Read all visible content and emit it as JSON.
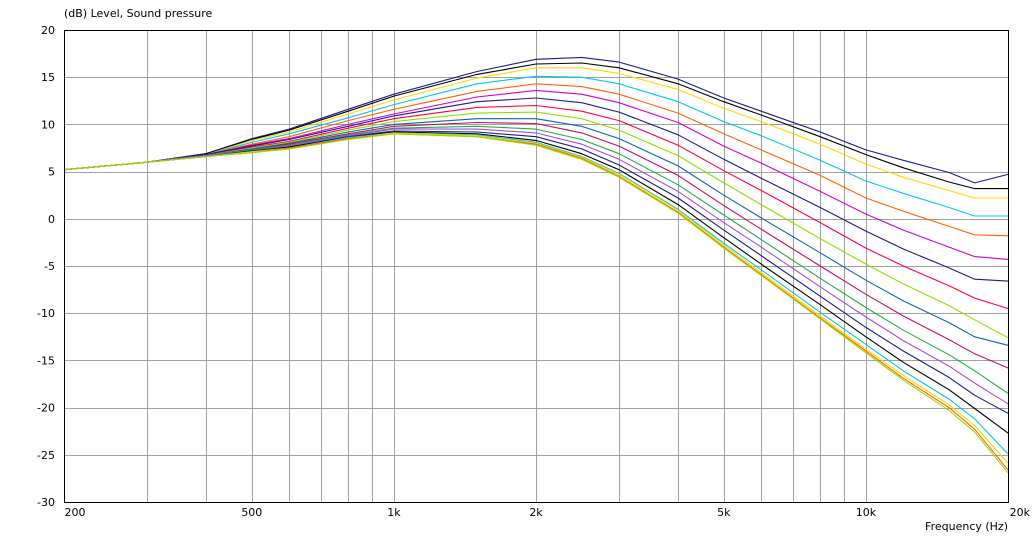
{
  "chart_data": {
    "type": "line",
    "title": "",
    "ylabel": "(dB)  Level, Sound pressure",
    "xlabel": "Frequency  (Hz)",
    "x_scale": "log",
    "xlim": [
      200,
      20000
    ],
    "ylim": [
      -30,
      20
    ],
    "grid": true,
    "legend": "none",
    "x_ticks": [
      {
        "value": 200,
        "label": "200"
      },
      {
        "value": 500,
        "label": "500"
      },
      {
        "value": 1000,
        "label": "1k"
      },
      {
        "value": 2000,
        "label": "2k"
      },
      {
        "value": 5000,
        "label": "5k"
      },
      {
        "value": 10000,
        "label": "10k"
      },
      {
        "value": 20000,
        "label": "20k"
      }
    ],
    "y_ticks": [
      20,
      15,
      10,
      5,
      0,
      -5,
      -10,
      -15,
      -20,
      -25,
      -30
    ],
    "x": [
      200,
      300,
      400,
      500,
      600,
      800,
      1000,
      1500,
      2000,
      2500,
      3000,
      4000,
      5000,
      6000,
      8000,
      10000,
      12000,
      15000,
      17000,
      20000
    ],
    "series": [
      {
        "color": "#1a1a8c",
        "values": [
          5.2,
          6.0,
          6.9,
          8.5,
          9.5,
          11.6,
          13.2,
          15.6,
          16.9,
          17.1,
          16.6,
          14.8,
          12.8,
          11.4,
          9.2,
          7.3,
          6.2,
          4.9,
          3.8,
          4.7
        ]
      },
      {
        "color": "#000000",
        "values": [
          5.2,
          6.0,
          6.9,
          8.4,
          9.4,
          11.4,
          13.0,
          15.3,
          16.4,
          16.5,
          16.0,
          14.3,
          12.4,
          11.0,
          8.7,
          6.8,
          5.4,
          3.9,
          3.2,
          3.2
        ]
      },
      {
        "color": "#ffd700",
        "values": [
          5.2,
          6.0,
          6.8,
          8.3,
          9.2,
          11.1,
          12.6,
          14.9,
          16.0,
          16.0,
          15.4,
          13.7,
          11.7,
          10.3,
          7.9,
          5.8,
          4.4,
          3.0,
          2.2,
          2.2
        ]
      },
      {
        "color": "#00c8e8",
        "values": [
          5.2,
          6.0,
          6.8,
          8.1,
          9.0,
          10.7,
          12.1,
          14.3,
          15.1,
          15.0,
          14.3,
          12.4,
          10.3,
          8.8,
          6.2,
          4.0,
          2.7,
          1.2,
          0.3,
          0.3
        ]
      },
      {
        "color": "#ff6400",
        "values": [
          5.2,
          6.0,
          6.8,
          7.9,
          8.7,
          10.4,
          11.6,
          13.5,
          14.3,
          14.0,
          13.2,
          11.2,
          9.0,
          7.3,
          4.6,
          2.2,
          0.8,
          -0.8,
          -1.7,
          -1.8
        ]
      },
      {
        "color": "#d000d0",
        "values": [
          5.2,
          6.0,
          6.8,
          7.8,
          8.5,
          10.0,
          11.1,
          12.9,
          13.6,
          13.2,
          12.3,
          10.2,
          7.7,
          5.9,
          2.9,
          0.5,
          -1.2,
          -3.0,
          -4.0,
          -4.3
        ]
      },
      {
        "color": "#1a1a8c",
        "values": [
          5.2,
          6.0,
          6.8,
          7.7,
          8.4,
          9.8,
          10.9,
          12.4,
          12.8,
          12.3,
          11.3,
          8.9,
          6.3,
          4.3,
          1.2,
          -1.3,
          -3.2,
          -5.2,
          -6.4,
          -6.6
        ]
      },
      {
        "color": "#ff0040",
        "values": [
          5.2,
          6.0,
          6.7,
          7.6,
          8.2,
          9.6,
          10.6,
          11.8,
          12.0,
          11.4,
          10.4,
          7.8,
          5.1,
          3.0,
          -0.4,
          -3.1,
          -5.0,
          -7.1,
          -8.4,
          -9.5
        ]
      },
      {
        "color": "#90e000",
        "values": [
          5.2,
          6.0,
          6.7,
          7.5,
          8.1,
          9.4,
          10.3,
          11.2,
          11.3,
          10.6,
          9.4,
          6.7,
          3.8,
          1.5,
          -2.1,
          -4.8,
          -6.9,
          -9.2,
          -10.7,
          -12.6
        ]
      },
      {
        "color": "#0a64b4",
        "values": [
          5.2,
          6.0,
          6.7,
          7.4,
          8.0,
          9.2,
          10.0,
          10.6,
          10.6,
          9.8,
          8.5,
          5.6,
          2.5,
          0.1,
          -3.6,
          -6.5,
          -8.7,
          -11.0,
          -12.5,
          -13.4
        ]
      },
      {
        "color": "#c01060",
        "values": [
          5.2,
          6.0,
          6.7,
          7.3,
          7.9,
          9.0,
          9.8,
          10.2,
          10.1,
          9.1,
          7.7,
          4.6,
          1.4,
          -1.1,
          -5.0,
          -8.0,
          -10.3,
          -12.8,
          -14.3,
          -15.8
        ]
      },
      {
        "color": "#20b040",
        "values": [
          5.2,
          6.0,
          6.7,
          7.3,
          7.8,
          8.9,
          9.6,
          9.8,
          9.5,
          8.4,
          6.9,
          3.6,
          0.4,
          -2.2,
          -6.3,
          -9.4,
          -11.8,
          -14.4,
          -16.1,
          -18.5
        ]
      },
      {
        "color": "#a050e0",
        "values": [
          5.2,
          6.0,
          6.7,
          7.2,
          7.7,
          8.8,
          9.5,
          9.5,
          9.1,
          7.9,
          6.3,
          2.9,
          -0.4,
          -3.0,
          -7.2,
          -10.4,
          -12.9,
          -15.6,
          -17.4,
          -19.6
        ]
      },
      {
        "color": "#1a1a8c",
        "values": [
          5.2,
          6.0,
          6.6,
          7.2,
          7.6,
          8.7,
          9.3,
          9.2,
          8.7,
          7.4,
          5.7,
          2.2,
          -1.2,
          -3.9,
          -8.2,
          -11.5,
          -14.0,
          -16.8,
          -18.7,
          -20.6
        ]
      },
      {
        "color": "#000000",
        "values": [
          5.2,
          6.0,
          6.6,
          7.1,
          7.6,
          8.6,
          9.2,
          9.0,
          8.3,
          6.9,
          5.2,
          1.5,
          -2.0,
          -4.8,
          -9.1,
          -12.5,
          -15.2,
          -18.1,
          -20.1,
          -22.7
        ]
      },
      {
        "color": "#00c8e8",
        "values": [
          5.2,
          6.0,
          6.6,
          7.1,
          7.5,
          8.6,
          9.1,
          8.9,
          8.1,
          6.6,
          4.8,
          1.0,
          -2.6,
          -5.4,
          -9.9,
          -13.3,
          -16.1,
          -19.1,
          -21.2,
          -24.9
        ]
      },
      {
        "color": "#ffd700",
        "values": [
          5.2,
          6.0,
          6.6,
          7.1,
          7.5,
          8.5,
          9.1,
          8.8,
          8.0,
          6.5,
          4.7,
          0.9,
          -2.8,
          -5.7,
          -10.3,
          -13.8,
          -16.6,
          -19.7,
          -21.9,
          -25.9
        ]
      },
      {
        "color": "#ff6400",
        "values": [
          5.2,
          6.0,
          6.6,
          7.0,
          7.5,
          8.5,
          9.0,
          8.7,
          7.9,
          6.4,
          4.5,
          0.7,
          -3.0,
          -5.9,
          -10.5,
          -14.0,
          -16.9,
          -20.0,
          -22.3,
          -26.6
        ]
      },
      {
        "color": "#90e000",
        "values": [
          5.2,
          6.0,
          6.6,
          7.0,
          7.4,
          8.4,
          9.0,
          8.7,
          7.8,
          6.3,
          4.4,
          0.6,
          -3.1,
          -6.0,
          -10.6,
          -14.2,
          -17.1,
          -20.3,
          -22.6,
          -26.9
        ]
      }
    ]
  }
}
